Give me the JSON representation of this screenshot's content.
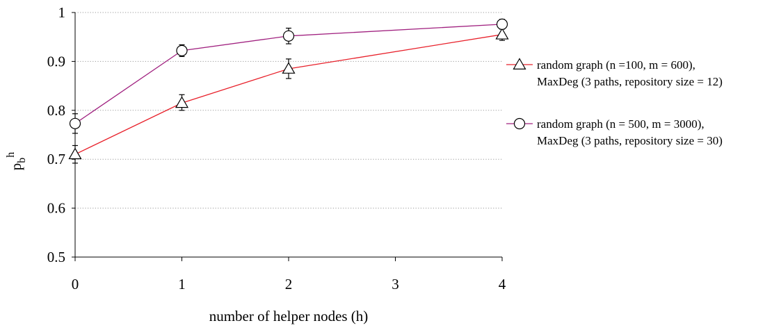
{
  "chart_data": {
    "type": "line",
    "xlabel": "number of helper nodes (h)",
    "ylabel": {
      "main": "p",
      "sub": "b",
      "sup": "h"
    },
    "categories": [
      "0",
      "1",
      "2",
      "3",
      "4"
    ],
    "x_positions": [
      0,
      1,
      2,
      3,
      4
    ],
    "ylim": [
      0.5,
      1.0
    ],
    "yticks": [
      "0.5",
      "0.6",
      "0.7",
      "0.8",
      "0.9",
      "1"
    ],
    "ytick_values": [
      0.5,
      0.6,
      0.7,
      0.8,
      0.9,
      1.0
    ],
    "grid": "horizontal",
    "legend_position": "right",
    "series": [
      {
        "name_line1": "random graph (n =100, m = 600),",
        "name_line2": "MaxDeg (3 paths, repository size = 12)",
        "marker": "triangle",
        "color": "#e8202a",
        "x": [
          0,
          1,
          2,
          4
        ],
        "values": [
          0.71,
          0.815,
          0.885,
          0.955
        ],
        "err_low": [
          0.018,
          0.015,
          0.02,
          0.012
        ],
        "err_high": [
          0.018,
          0.017,
          0.02,
          0.012
        ]
      },
      {
        "name_line1": "random graph (n = 500, m = 3000),",
        "name_line2": "MaxDeg (3 paths, repository size = 30)",
        "marker": "circle",
        "color": "#a0207f",
        "x": [
          0,
          1,
          2,
          4
        ],
        "values": [
          0.773,
          0.922,
          0.952,
          0.976
        ],
        "err_low": [
          0.02,
          0.012,
          0.016,
          0.01
        ],
        "err_high": [
          0.02,
          0.012,
          0.016,
          0.01
        ]
      }
    ]
  }
}
